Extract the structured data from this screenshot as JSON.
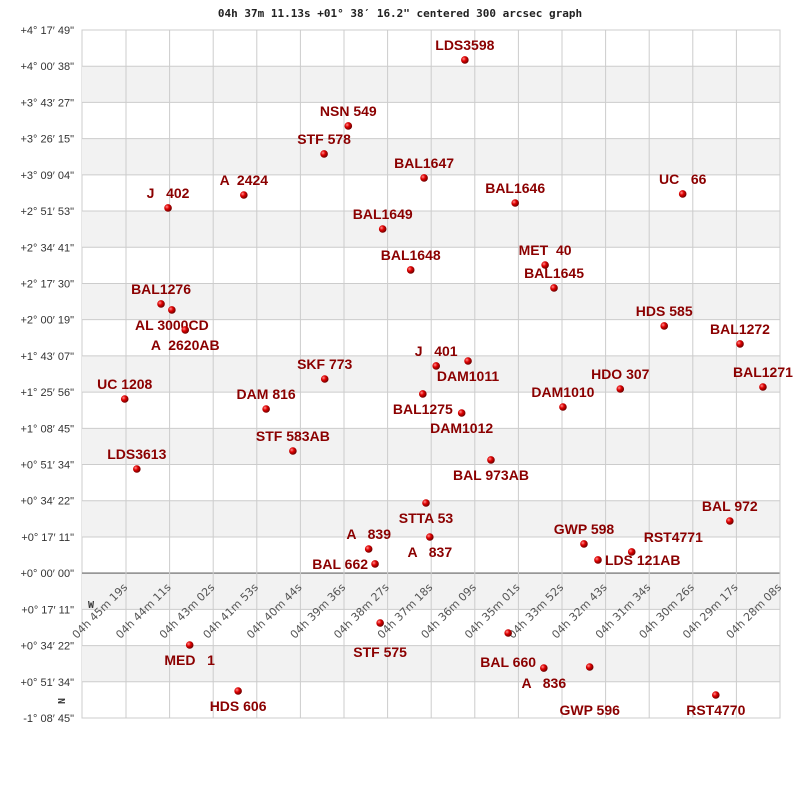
{
  "chart_data": {
    "type": "scatter",
    "title": "04h 37m 11.13s +01° 38′ 16.2\" centered 300 arcsec graph",
    "x_unit": "RA seconds of time",
    "y_unit": "Dec arcsec",
    "xlim": [
      17119,
      16093
    ],
    "ylim": [
      -4125,
      15469
    ],
    "grid": true,
    "compass": {
      "west": "W",
      "north": "N"
    },
    "colors": {
      "star": "#dd0000",
      "label": "#8b0000",
      "band": "#f2f2f2",
      "grid": "#cccccc"
    },
    "x_ticks": [
      "04h 45m 19s",
      "04h 44m 11s",
      "04h 43m 02s",
      "04h 41m 53s",
      "04h 40m 44s",
      "04h 39m 36s",
      "04h 38m 27s",
      "04h 37m 18s",
      "04h 36m 09s",
      "04h 35m 01s",
      "04h 33m 52s",
      "04h 32m 43s",
      "04h 31m 34s",
      "04h 30m 26s",
      "04h 29m 17s",
      "04h 28m 08s"
    ],
    "y_ticks": [
      "+4° 17′ 49\"",
      "+4° 00′ 38\"",
      "+3° 43′ 27\"",
      "+3° 26′ 15\"",
      "+3° 09′ 04\"",
      "+2° 51′ 53\"",
      "+2° 34′ 41\"",
      "+2° 17′ 30\"",
      "+2° 00′ 19\"",
      "+1° 43′ 07\"",
      "+1° 25′ 56\"",
      "+1° 08′ 45\"",
      "+0° 51′ 34\"",
      "+0° 34′ 22\"",
      "+0° 17′ 11\"",
      "+0° 00′ 00\"",
      "+0° 17′ 11\"",
      "+0° 34′ 22\"",
      "+0° 51′ 34\"",
      "-1° 08′ 45\""
    ],
    "stars": [
      {
        "name": "LDS3598",
        "ra": 16587,
        "dec": 14621
      },
      {
        "name": "NSN 549",
        "ra": 16770,
        "dec": 12740
      },
      {
        "name": "STF 578",
        "ra": 16808,
        "dec": 11942
      },
      {
        "name": "BAL1647",
        "ra": 16651,
        "dec": 11258
      },
      {
        "name": "J   402",
        "ra": 17053,
        "dec": 10403
      },
      {
        "name": "A  2424",
        "ra": 16934,
        "dec": 10773
      },
      {
        "name": "BAL1646",
        "ra": 16508,
        "dec": 10545
      },
      {
        "name": "UC   66",
        "ra": 16245,
        "dec": 10802
      },
      {
        "name": "BAL1649",
        "ra": 16716,
        "dec": 9804
      },
      {
        "name": "BAL1648",
        "ra": 16672,
        "dec": 8636
      },
      {
        "name": "MET  40",
        "ra": 16461,
        "dec": 8778
      },
      {
        "name": "BAL1645",
        "ra": 16447,
        "dec": 8123
      },
      {
        "name": "BAL1276",
        "ra": 17064,
        "dec": 7667
      },
      {
        "name": "AL 3000CD",
        "ra": 17047,
        "dec": 7496
      },
      {
        "name": "A  2620AB",
        "ra": 17026,
        "dec": 6926
      },
      {
        "name": "HDS 585",
        "ra": 16274,
        "dec": 7040
      },
      {
        "name": "BAL1272",
        "ra": 16155,
        "dec": 6527
      },
      {
        "name": "J   401",
        "ra": 16632,
        "dec": 5900
      },
      {
        "name": "DAM1011",
        "ra": 16582,
        "dec": 6042
      },
      {
        "name": "SKF 773",
        "ra": 16807,
        "dec": 5529
      },
      {
        "name": "BAL1275",
        "ra": 16653,
        "dec": 5102
      },
      {
        "name": "DAM1012",
        "ra": 16592,
        "dec": 4560
      },
      {
        "name": "UC 1208",
        "ra": 17121,
        "dec": 4959
      },
      {
        "name": "DAM 816",
        "ra": 16899,
        "dec": 4674
      },
      {
        "name": "HDO 307",
        "ra": 16343,
        "dec": 5244
      },
      {
        "name": "DAM1010",
        "ra": 16433,
        "dec": 4731
      },
      {
        "name": "BAL1271",
        "ra": 16119,
        "dec": 5301
      },
      {
        "name": "STF 583AB",
        "ra": 16857,
        "dec": 3477
      },
      {
        "name": "BAL 973AB",
        "ra": 16546,
        "dec": 3221
      },
      {
        "name": "LDS3613",
        "ra": 17102,
        "dec": 2964
      },
      {
        "name": "STTA 53",
        "ra": 16648,
        "dec": 1995
      },
      {
        "name": "A   839",
        "ra": 16738,
        "dec": 684
      },
      {
        "name": "A   837",
        "ra": 16642,
        "dec": 1026
      },
      {
        "name": "BAL 662",
        "ra": 16728,
        "dec": 257
      },
      {
        "name": "BAL 972",
        "ra": 16171,
        "dec": 1482
      },
      {
        "name": "GWP 598",
        "ra": 16400,
        "dec": 827
      },
      {
        "name": "LDS 121AB",
        "ra": 16378,
        "dec": 371
      },
      {
        "name": "RST4771",
        "ra": 16325,
        "dec": 599
      },
      {
        "name": "STF 575",
        "ra": 16720,
        "dec": -1425
      },
      {
        "name": "BAL 660",
        "ra": 16519,
        "dec": -1710
      },
      {
        "name": "MED   1",
        "ra": 17019,
        "dec": -2052
      },
      {
        "name": "HDS 606",
        "ra": 16943,
        "dec": -3363
      },
      {
        "name": "A   836",
        "ra": 16463,
        "dec": -2708
      },
      {
        "name": "GWP 596",
        "ra": 16391,
        "dec": -2679
      },
      {
        "name": "RST4770",
        "ra": 16193,
        "dec": -3477
      }
    ]
  }
}
